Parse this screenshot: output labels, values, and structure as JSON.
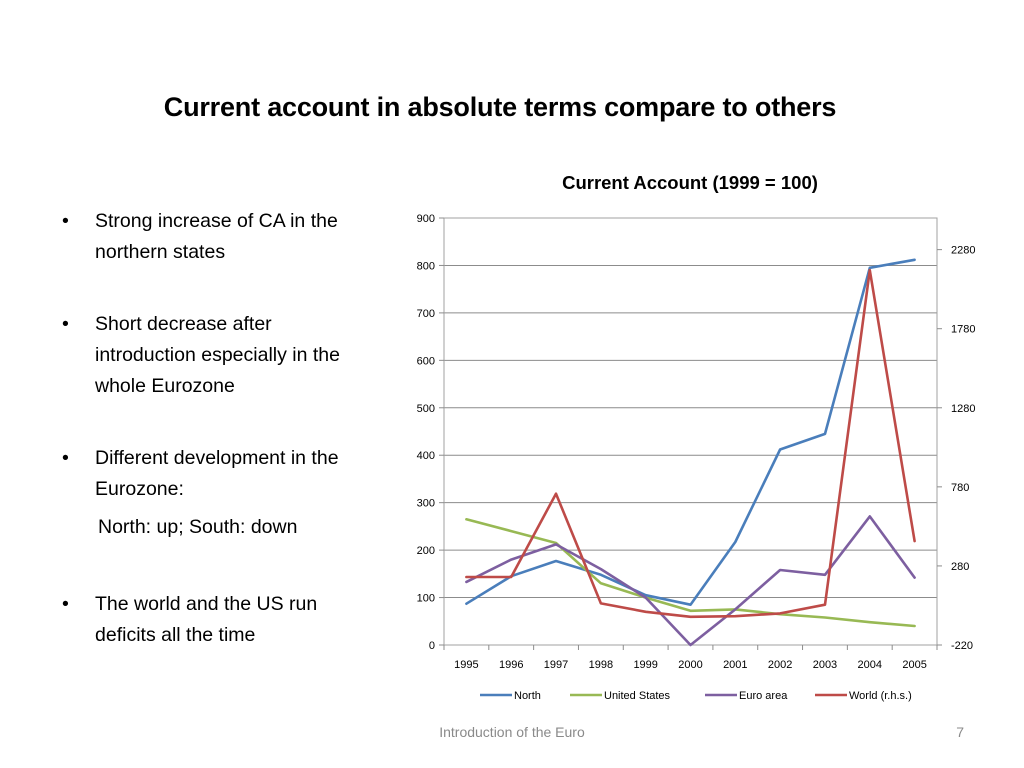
{
  "slide": {
    "title": "Current account in absolute terms compare to others",
    "bullets": [
      "Strong increase of CA in the northern states",
      "Short decrease after introduction especially in the whole Eurozone",
      "Different development in the Eurozone:",
      "The world and the US run deficits all the time"
    ],
    "subline": "North: up; South: down",
    "bullet_symbol": "•",
    "footer": "Introduction of the Euro",
    "page_number": "7"
  },
  "chart_data": {
    "type": "line",
    "title": "Current Account (1999 = 100)",
    "xlabel": "",
    "ylabel": "",
    "categories": [
      "1995",
      "1996",
      "1997",
      "1998",
      "1999",
      "2000",
      "2001",
      "2002",
      "2003",
      "2004",
      "2005"
    ],
    "ylim": [
      0,
      900
    ],
    "yticks": [
      0,
      100,
      200,
      300,
      400,
      500,
      600,
      700,
      800,
      900
    ],
    "y2lim": [
      -220,
      2480
    ],
    "y2ticks": [
      -220,
      280,
      780,
      1280,
      1780,
      2280
    ],
    "grid": true,
    "legend_position": "bottom",
    "series": [
      {
        "name": "North",
        "axis": "left",
        "color": "#4a7ebb",
        "values": [
          87,
          145,
          177,
          148,
          105,
          85,
          217,
          412,
          445,
          795,
          812
        ]
      },
      {
        "name": "United States",
        "axis": "left",
        "color": "#98b954",
        "values": [
          265,
          240,
          215,
          130,
          100,
          72,
          75,
          65,
          58,
          48,
          40
        ]
      },
      {
        "name": "Euro area",
        "axis": "left",
        "color": "#7d5fa0",
        "values": [
          133,
          180,
          212,
          160,
          100,
          0,
          75,
          158,
          148,
          271,
          142
        ]
      },
      {
        "name": "World (r.h.s.)",
        "axis": "right",
        "color": "#be4b48",
        "values": [
          210,
          210,
          737,
          43,
          -10,
          -42,
          -38,
          -20,
          35,
          2150,
          437
        ]
      }
    ]
  }
}
